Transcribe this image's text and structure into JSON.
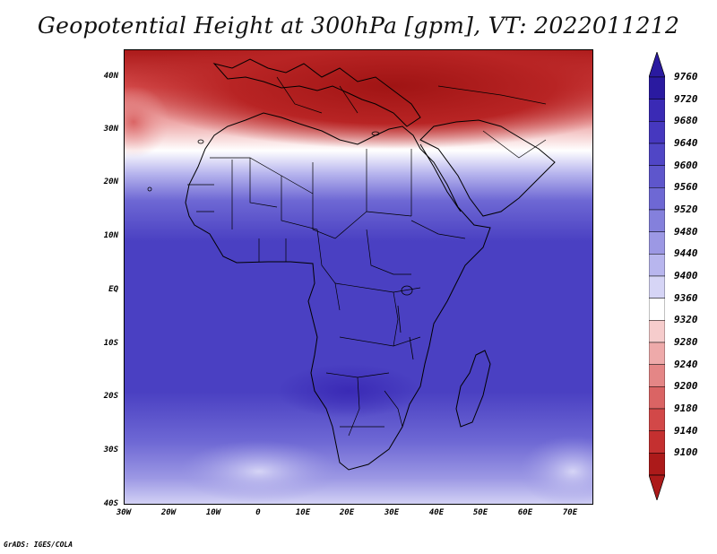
{
  "title": "Geopotential Height at 300hPa [gpm], VT: 2022011212",
  "credit": "GrADS: IGES/COLA",
  "y_axis": [
    "40N",
    "30N",
    "20N",
    "10N",
    "EQ",
    "10S",
    "20S",
    "30S",
    "40S"
  ],
  "x_axis": [
    "30W",
    "20W",
    "10W",
    "0",
    "10E",
    "20E",
    "30E",
    "40E",
    "50E",
    "60E",
    "70E"
  ],
  "colorbar": {
    "levels": [
      "9760",
      "9720",
      "9680",
      "9640",
      "9600",
      "9560",
      "9520",
      "9480",
      "9440",
      "9400",
      "9360",
      "9320",
      "9280",
      "9240",
      "9200",
      "9180",
      "9140",
      "9100"
    ],
    "colors": [
      "#2a1aa0",
      "#3a2ab5",
      "#4638bf",
      "#5046c6",
      "#5e56cc",
      "#6e68d4",
      "#8480dc",
      "#9c98e4",
      "#b8b6ee",
      "#d6d5f6",
      "#ffffff",
      "#f6cccc",
      "#eeaaaa",
      "#e48686",
      "#da6464",
      "#d24848",
      "#c43030",
      "#ac1a1a"
    ]
  },
  "map": {
    "region": "Africa",
    "low_heights_color": "#a81c1c",
    "high_heights_color": "#3a2ab5"
  }
}
